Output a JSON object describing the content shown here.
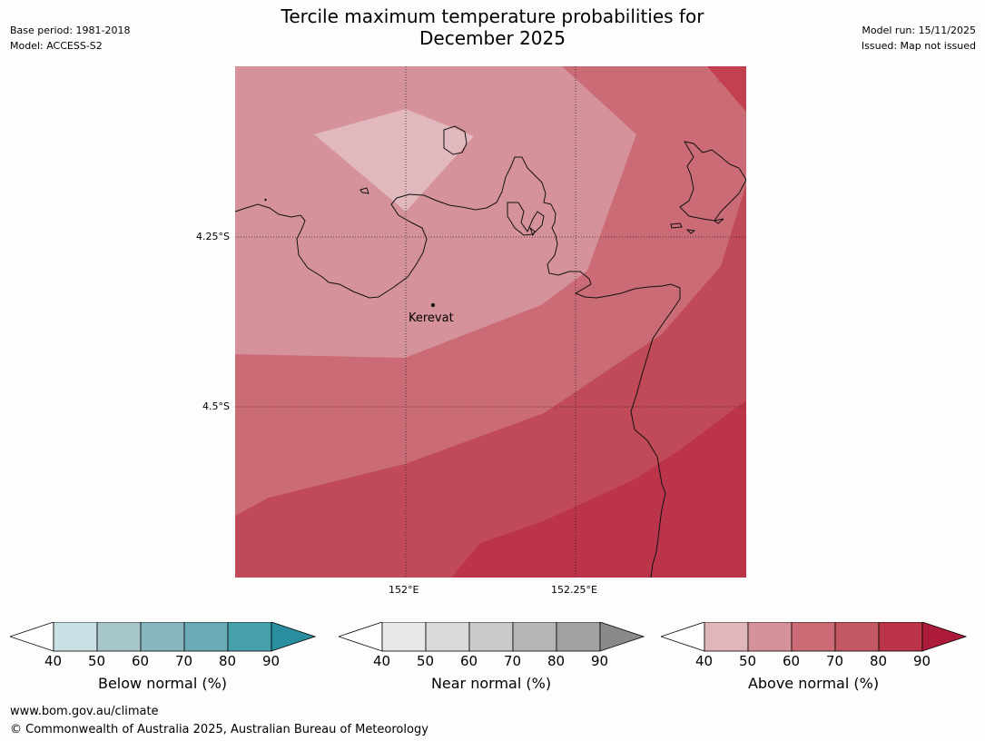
{
  "title_line1": "Tercile maximum temperature probabilities for",
  "title_line2": "December 2025",
  "meta_left": {
    "base_period": "Base period: 1981-2018",
    "model": "Model: ACCESS-S2"
  },
  "meta_right": {
    "model_run": "Model run: 15/11/2025",
    "issued": "Issued: Map not issued"
  },
  "map": {
    "lat_labels": [
      "4.25°S",
      "4.5°S"
    ],
    "lon_labels": [
      "152°E",
      "152.25°E"
    ],
    "place": "Kerevat"
  },
  "legends": [
    {
      "title": "Below normal (%)",
      "ticks": [
        "40",
        "50",
        "60",
        "70",
        "80",
        "90"
      ],
      "colors": [
        "#c9e1e5",
        "#a7c6cb",
        "#89b5c0",
        "#6aaab7",
        "#45a0ac",
        "#2a8e9e"
      ]
    },
    {
      "title": "Near normal (%)",
      "ticks": [
        "40",
        "50",
        "60",
        "70",
        "80",
        "90"
      ],
      "colors": [
        "#e8e8e8",
        "#d9d9d9",
        "#c9c9c9",
        "#b5b5b5",
        "#a1a1a1",
        "#8a8a8a"
      ]
    },
    {
      "title": "Above normal (%)",
      "ticks": [
        "40",
        "50",
        "60",
        "70",
        "80",
        "90"
      ],
      "colors": [
        "#e1b6bb",
        "#d6929a",
        "#cb6b76",
        "#c25862",
        "#bb3449",
        "#ad1b3a"
      ]
    }
  ],
  "footer": {
    "url": "www.bom.gov.au/climate",
    "copyright": "© Commonwealth of Australia 2025, Australian Bureau of Meteorology"
  }
}
